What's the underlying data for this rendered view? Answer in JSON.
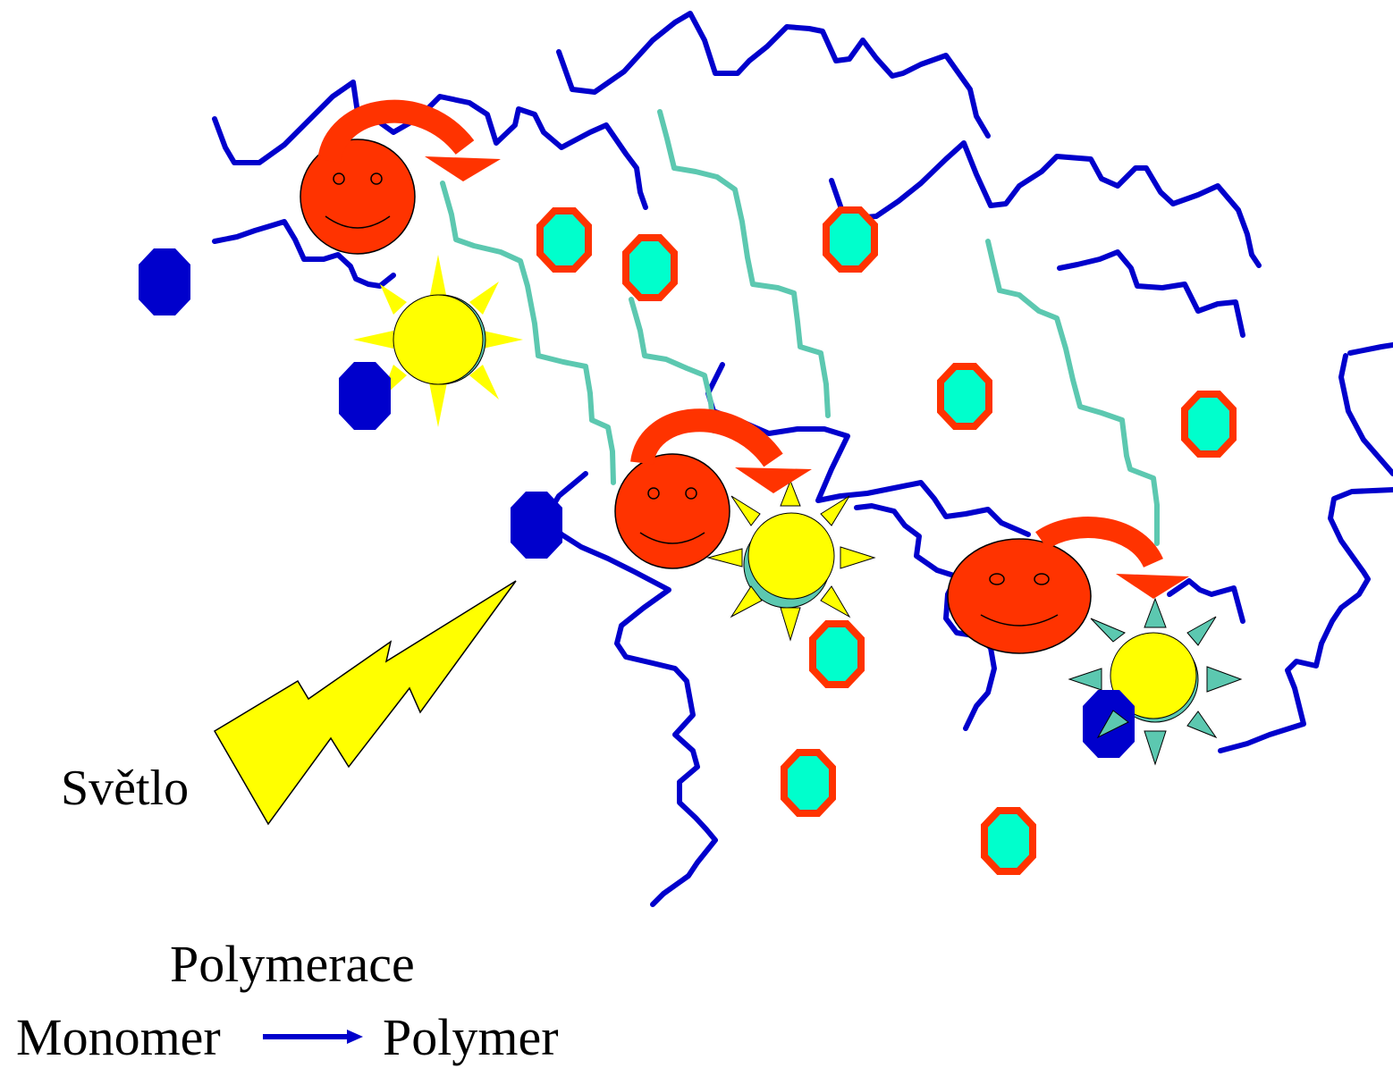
{
  "labels": {
    "light": "Světlo",
    "process": "Polymerace",
    "reactant": "Monomer",
    "product": "Polymer"
  },
  "colors": {
    "polymer_chain": "#0000cc",
    "grafted_chain": "#5cc8b0",
    "monomer": "#0000cc",
    "initiator_fill": "#00ffcc",
    "initiator_border": "#ff3300",
    "radical_face": "#ff3300",
    "sun": "#ffff00",
    "lightning": "#ffff00"
  },
  "icons": {
    "lightning": "lightning-bolt-icon",
    "sun": "sun-icon",
    "radical": "smiley-face-icon",
    "transfer": "curved-arrow-icon",
    "monomer": "octagon-icon",
    "initiator": "octagon-ring-icon"
  }
}
